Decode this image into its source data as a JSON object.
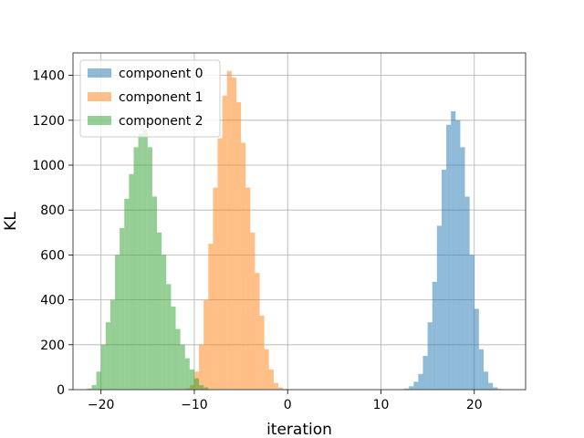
{
  "chart_data": {
    "type": "bar",
    "subtype": "overlapping-histogram",
    "title": "",
    "xlabel": "iteration",
    "ylabel": "KL",
    "xlim": [
      -23,
      25.5
    ],
    "ylim": [
      0,
      1500
    ],
    "xticks": [
      -20,
      -10,
      0,
      10,
      20
    ],
    "yticks": [
      0,
      200,
      400,
      600,
      800,
      1000,
      1200,
      1400
    ],
    "grid": true,
    "legend_position": "top-left",
    "bin_width": 0.5,
    "series": [
      {
        "name": "component 0",
        "color": "#1f77b4",
        "opacity": 0.5,
        "bin_start": 12.5,
        "counts": [
          5,
          15,
          35,
          70,
          150,
          300,
          480,
          730,
          980,
          1180,
          1240,
          1200,
          1080,
          860,
          600,
          360,
          180,
          80,
          30,
          10,
          3
        ]
      },
      {
        "name": "component 1",
        "color": "#ff7f0e",
        "opacity": 0.5,
        "bin_start": -11,
        "counts": [
          5,
          20,
          80,
          200,
          400,
          650,
          900,
          1120,
          1310,
          1420,
          1390,
          1280,
          1100,
          900,
          700,
          520,
          330,
          180,
          90,
          30,
          10,
          3
        ]
      },
      {
        "name": "component 2",
        "color": "#2ca02c",
        "opacity": 0.5,
        "bin_start": -21.5,
        "counts": [
          5,
          20,
          80,
          200,
          300,
          400,
          600,
          720,
          850,
          960,
          1080,
          1140,
          1160,
          1080,
          860,
          700,
          600,
          470,
          370,
          270,
          200,
          140,
          90,
          50,
          20,
          10
        ]
      }
    ]
  }
}
